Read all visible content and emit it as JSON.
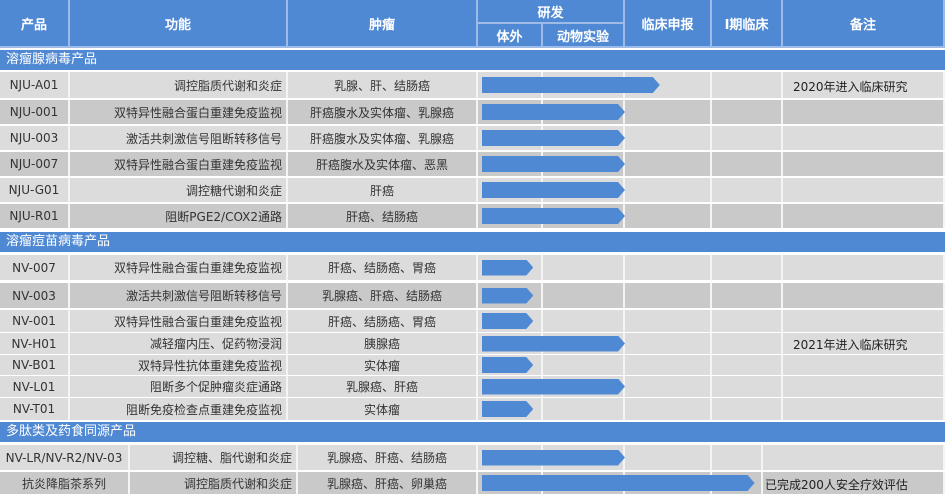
{
  "header": {
    "product": "产品",
    "function": "功能",
    "tumor": "肿瘤",
    "rnd": "研发",
    "in_vitro": "体外",
    "animal": "动物实验",
    "clinical_filing": "临床申报",
    "phase1": "I期临床",
    "notes": "备注"
  },
  "stages": [
    "体外",
    "动物实验",
    "临床申报",
    "I期临床"
  ],
  "sections": [
    {
      "title": "溶瘤腺病毒产品",
      "rows": [
        {
          "product": "NJU-A01",
          "function": "调控脂质代谢和炎症",
          "tumor": "乳腺、肝、结肠癌",
          "progress_stage": 2.4,
          "note": "2020年进入临床研究"
        },
        {
          "product": "NJU-001",
          "function": "双特异性融合蛋白重建免疫监视",
          "tumor": "肝癌腹水及实体瘤、乳腺癌",
          "progress_stage": 2
        },
        {
          "product": "NJU-003",
          "function": "激活共刺激信号阻断转移信号",
          "tumor": "肝癌腹水及实体瘤、乳腺癌",
          "progress_stage": 2
        },
        {
          "product": "NJU-007",
          "function": "双特异性融合蛋白重建免疫监视",
          "tumor": "肝癌腹水及实体瘤、恶黑",
          "progress_stage": 2
        },
        {
          "product": "NJU-G01",
          "function": "调控糖代谢和炎症",
          "tumor": "肝癌",
          "progress_stage": 2
        },
        {
          "product": "NJU-R01",
          "function": "阻断PGE2/COX2通路",
          "tumor": "肝癌、结肠癌",
          "progress_stage": 2
        }
      ]
    },
    {
      "title": "溶瘤痘苗病毒产品",
      "rows": [
        {
          "product": "NV-007",
          "function": "双特异性融合蛋白重建免疫监视",
          "tumor": "肝癌、结肠癌、胃癌",
          "progress_stage": 0.85
        },
        {
          "product": "NV-003",
          "function": "激活共刺激信号阻断转移信号",
          "tumor": "乳腺癌、肝癌、结肠癌",
          "progress_stage": 0.85
        },
        {
          "product": "NV-001",
          "function": "双特异性融合蛋白重建免疫监视",
          "tumor": "肝癌、结肠癌、胃癌",
          "progress_stage": 0.85
        },
        {
          "product": "NV-H01",
          "function": "减轻瘤内压、促药物浸润",
          "tumor": "胰腺癌",
          "progress_stage": 2,
          "note": "2021年进入临床研究"
        },
        {
          "product": "NV-B01",
          "function": "双特异性抗体重建免疫监视",
          "tumor": "实体瘤",
          "progress_stage": 0.85
        },
        {
          "product": "NV-L01",
          "function": "阻断多个促肿瘤炎症通路",
          "tumor": "乳腺癌、肝癌",
          "progress_stage": 2
        },
        {
          "product": "NV-T01",
          "function": "阻断免疫检查点重建免疫监视",
          "tumor": "实体瘤",
          "progress_stage": 0.85
        }
      ]
    },
    {
      "title": "多肽类及药食同源产品",
      "rows": [
        {
          "product": "NV-LR/NV-R2/NV-03",
          "function": "调控糖、脂代谢和炎症",
          "tumor": "乳腺癌、肝癌、结肠癌",
          "progress_stage": 2
        },
        {
          "product": "抗炎降脂茶系列",
          "function": "调控脂质代谢和炎症",
          "tumor": "乳腺癌、肝癌、卵巢癌",
          "progress_stage": 3.6,
          "note": "已完成200人安全疗效评估"
        }
      ]
    }
  ],
  "colors": {
    "header": "#5089d3",
    "row_light": "#dcdcdc",
    "row_dark": "#c9c9c9"
  }
}
